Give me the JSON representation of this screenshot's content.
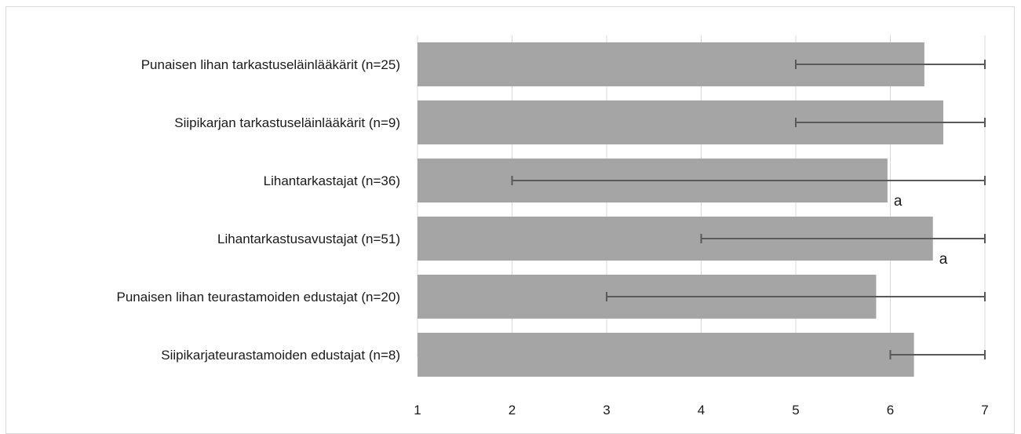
{
  "chart_data": {
    "type": "bar",
    "orientation": "horizontal",
    "categories": [
      "Punaisen lihan tarkastuseläinlääkärit (n=25)",
      "Siipikarjan tarkastuseläinlääkärit (n=9)",
      "Lihantarkastajat (n=36)",
      "Lihantarkastusavustajat (n=51)",
      "Punaisen lihan teurastamoiden edustajat (n=20)",
      "Siipikarjateurastamoiden edustajat (n=8)"
    ],
    "values": [
      6.36,
      6.56,
      5.97,
      6.45,
      5.85,
      6.25
    ],
    "error_ranges": [
      [
        5,
        7
      ],
      [
        5,
        7
      ],
      [
        2,
        7
      ],
      [
        4,
        7
      ],
      [
        3,
        7
      ],
      [
        6,
        7
      ]
    ],
    "annotations": [
      "",
      "",
      "a",
      "a",
      "",
      ""
    ],
    "xlim": [
      1,
      7
    ],
    "xticks": [
      1,
      2,
      3,
      4,
      5,
      6,
      7
    ],
    "grid": "vertical",
    "legend": "none",
    "bar_color": "#a5a5a5",
    "error_bar_color": "#595959",
    "grid_color": "#d9d9d9"
  }
}
